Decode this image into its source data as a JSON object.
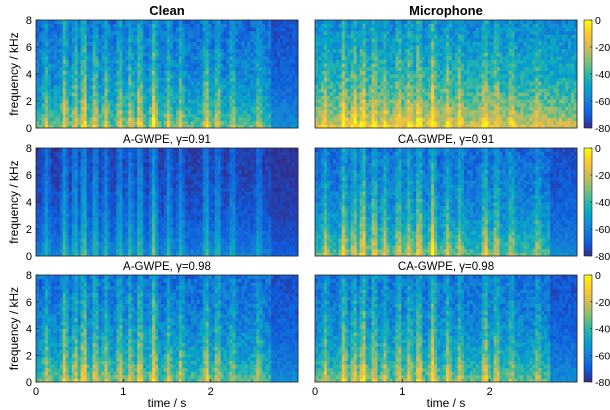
{
  "chart_data": [
    {
      "type": "heatmap",
      "title": "Clean",
      "ylabel": "frequency / kHz",
      "yticks": [
        "0",
        "2",
        "4",
        "6",
        "8"
      ],
      "ylim": [
        0,
        8
      ],
      "xlim": [
        0,
        3.0
      ],
      "colorbar": {
        "ticks": [
          "0",
          "-20",
          "-40",
          "-60",
          "-80"
        ],
        "range": [
          -80,
          0
        ]
      }
    },
    {
      "type": "heatmap",
      "title": "Microphone",
      "yticks": [],
      "ylim": [
        0,
        8
      ],
      "xlim": [
        0,
        3.0
      ],
      "colorbar": {
        "ticks": [
          "0",
          "-20",
          "-40",
          "-60",
          "-80"
        ],
        "range": [
          -80,
          0
        ]
      }
    },
    {
      "type": "heatmap",
      "title": "A-GWPE, γ=0.91",
      "ylabel": "frequency / kHz",
      "yticks": [
        "0",
        "2",
        "4",
        "6",
        "8"
      ],
      "ylim": [
        0,
        8
      ],
      "xlim": [
        0,
        3.0
      ],
      "colorbar": {
        "ticks": [
          "0",
          "-20",
          "-40",
          "-60",
          "-80"
        ],
        "range": [
          -80,
          0
        ]
      }
    },
    {
      "type": "heatmap",
      "title": "CA-GWPE, γ=0.91",
      "yticks": [],
      "ylim": [
        0,
        8
      ],
      "xlim": [
        0,
        3.0
      ],
      "colorbar": {
        "ticks": [
          "0",
          "-20",
          "-40",
          "-60",
          "-80"
        ],
        "range": [
          -80,
          0
        ]
      }
    },
    {
      "type": "heatmap",
      "title": "A-GWPE, γ=0.98",
      "ylabel": "frequency / kHz",
      "xlabel": "time / s",
      "xticks": [
        "0",
        "1",
        "2"
      ],
      "yticks": [
        "0",
        "2",
        "4",
        "6",
        "8"
      ],
      "ylim": [
        0,
        8
      ],
      "xlim": [
        0,
        3.0
      ],
      "colorbar": {
        "ticks": [
          "0",
          "-20",
          "-40",
          "-60",
          "-80"
        ],
        "range": [
          -80,
          0
        ]
      }
    },
    {
      "type": "heatmap",
      "title": "CA-GWPE, γ=0.98",
      "xlabel": "time / s",
      "xticks": [
        "0",
        "1",
        "2"
      ],
      "yticks": [],
      "ylim": [
        0,
        8
      ],
      "xlim": [
        0,
        3.0
      ],
      "colorbar": {
        "ticks": [
          "0",
          "-20",
          "-40",
          "-60",
          "-80"
        ],
        "range": [
          -80,
          0
        ]
      }
    }
  ],
  "colormap": [
    "#352a87",
    "#0f5cdd",
    "#1481d6",
    "#06a4ca",
    "#2eb7a4",
    "#87bf77",
    "#d1bb59",
    "#fec832",
    "#f9fb0e"
  ]
}
